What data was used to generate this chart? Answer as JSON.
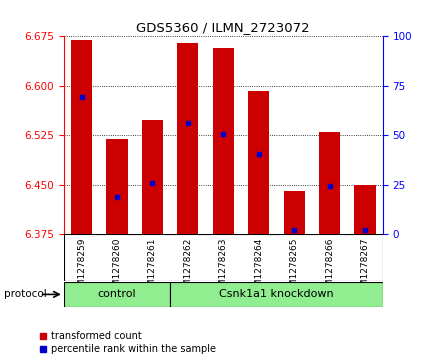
{
  "title": "GDS5360 / ILMN_2723072",
  "samples": [
    "GSM1278259",
    "GSM1278260",
    "GSM1278261",
    "GSM1278262",
    "GSM1278263",
    "GSM1278264",
    "GSM1278265",
    "GSM1278266",
    "GSM1278267"
  ],
  "bar_tops": [
    6.67,
    6.52,
    6.548,
    6.665,
    6.658,
    6.592,
    6.44,
    6.53,
    6.45
  ],
  "bar_base": 6.375,
  "blue_values": [
    6.583,
    6.432,
    6.452,
    6.543,
    6.527,
    6.497,
    6.381,
    6.448,
    6.381
  ],
  "ylim": [
    6.375,
    6.675
  ],
  "yticks": [
    6.375,
    6.45,
    6.525,
    6.6,
    6.675
  ],
  "right_yticks": [
    0,
    25,
    50,
    75,
    100
  ],
  "bar_color": "#CC0000",
  "blue_color": "#0000CC",
  "bar_width": 0.6,
  "control_label": "control",
  "knockdown_label": "Csnk1a1 knockdown",
  "protocol_label": "protocol",
  "legend_red": "transformed count",
  "legend_blue": "percentile rank within the sample",
  "background_color": "#ffffff",
  "group_box_color": "#90EE90",
  "xlabel_area_bg": "#d3d3d3",
  "n_control": 3,
  "n_samples": 9
}
